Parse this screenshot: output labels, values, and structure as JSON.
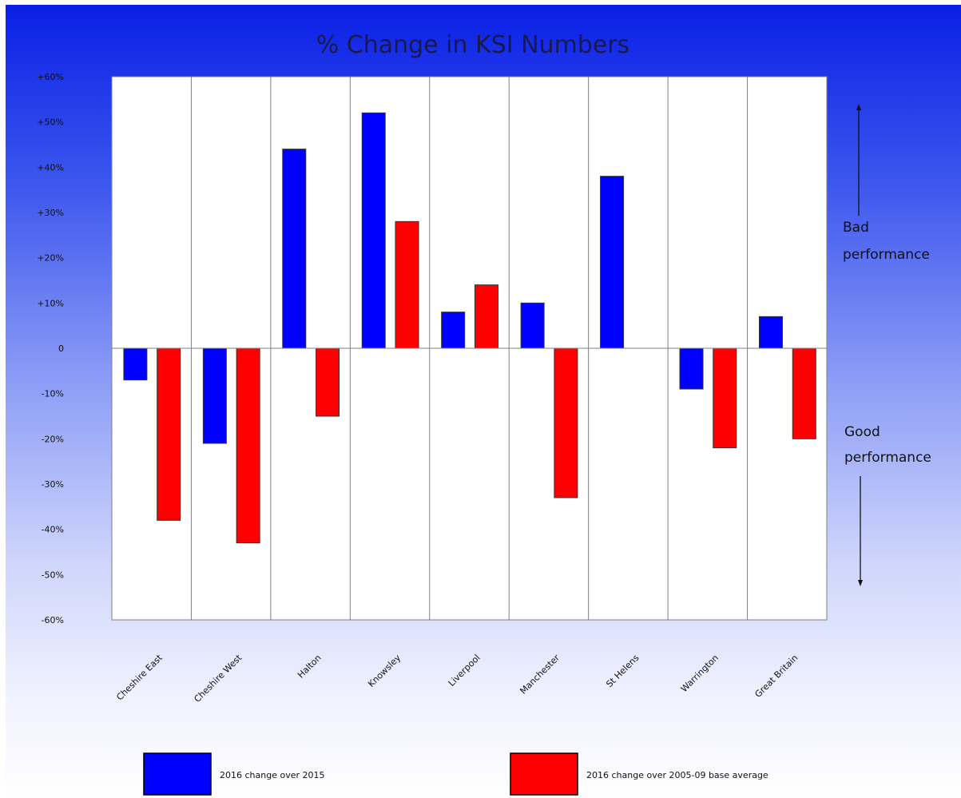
{
  "chart_data": {
    "type": "bar",
    "title": "% Change in KSI Numbers",
    "categories": [
      "Cheshire East",
      "Cheshire West",
      "Halton",
      "Knowsley",
      "Liverpool",
      "Manchester",
      "St Helens",
      "Warrington",
      "Great Britain"
    ],
    "series": [
      {
        "name": "2016 change over 2015",
        "color": "#0000ff",
        "values": [
          -7,
          -21,
          44,
          52,
          8,
          10,
          38,
          -9,
          7
        ]
      },
      {
        "name": "2016 change over 2005-09 base average",
        "color": "#ff0000",
        "values": [
          -38,
          -43,
          -15,
          28,
          14,
          -33,
          0,
          -22,
          -20
        ]
      }
    ],
    "ylim": [
      -60,
      60
    ],
    "yticks": [
      60,
      50,
      40,
      30,
      20,
      10,
      0,
      -10,
      -20,
      -30,
      -40,
      -50,
      -60
    ],
    "ytick_labels": [
      "+60%",
      "+50%",
      "+40%",
      "+30%",
      "+20%",
      "+10%",
      "0",
      "-10%",
      "-20%",
      "-30%",
      "-40%",
      "-50%",
      "-60%"
    ],
    "grid": "vertical category separators",
    "legend": "bottom",
    "annotations": {
      "bad": [
        "Bad",
        "performance"
      ],
      "good": [
        "Good",
        "performance"
      ]
    }
  }
}
